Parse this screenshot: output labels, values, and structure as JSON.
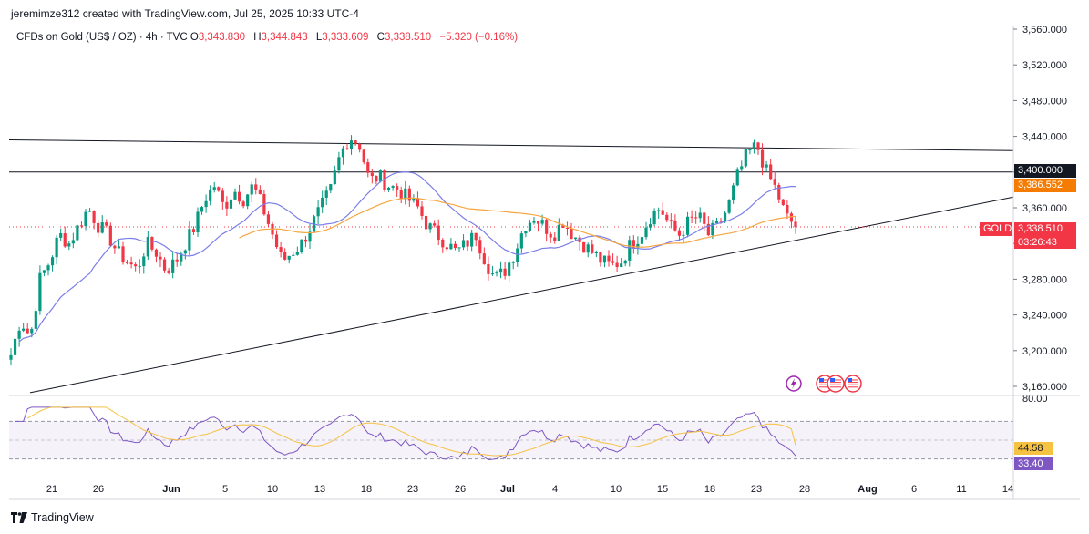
{
  "header": {
    "byline": "jeremimze312 created with TradingView.com, Jul 25, 2025 10:33 UTC-4"
  },
  "legend": {
    "symbol": "CFDs on Gold (US$ / OZ) · 4h · TVC",
    "o_label": "O",
    "o_value": "3,343.830",
    "h_label": "H",
    "h_value": "3,344.843",
    "l_label": "L",
    "l_value": "3,333.609",
    "c_label": "C",
    "c_value": "3,338.510",
    "change": "−5.320 (−0.16%)"
  },
  "price_tags": {
    "level": "3,400.000",
    "ma": "3,386.552",
    "symbol": "GOLD",
    "last": "3,338.510",
    "countdown": "03:26:43"
  },
  "rsi_tags": {
    "ma": "44.58",
    "rsi": "33.40"
  },
  "footer": {
    "brand": "TradingView"
  },
  "colors": {
    "up": "#089981",
    "down": "#f23645",
    "ma_slow": "#7b7fe8",
    "ma_fast": "#f5a742",
    "rsi": "#7e57c2",
    "rsi_ma": "#f5c242",
    "line": "#131722"
  },
  "chart_data": {
    "type": "candlestick",
    "timeframe": "4h",
    "price_axis": {
      "ticks": [
        "3,560.000",
        "3,520.000",
        "3,480.000",
        "3,440.000",
        "3,400.000",
        "3,360.000",
        "3,320.000",
        "3,280.000",
        "3,240.000",
        "3,200.000",
        "3,160.000"
      ],
      "range": [
        3140,
        3570
      ]
    },
    "time_axis": {
      "labels": [
        "21",
        "26",
        "Jun",
        "5",
        "10",
        "13",
        "18",
        "23",
        "26",
        "Jul",
        "4",
        "10",
        "15",
        "18",
        "23",
        "28",
        "Aug",
        "6",
        "11",
        "14"
      ]
    },
    "close_path": [
      3195,
      3235,
      3215,
      3280,
      3300,
      3330,
      3320,
      3340,
      3360,
      3340,
      3330,
      3310,
      3300,
      3290,
      3320,
      3310,
      3290,
      3300,
      3320,
      3340,
      3370,
      3385,
      3360,
      3380,
      3370,
      3385,
      3360,
      3330,
      3300,
      3310,
      3320,
      3340,
      3360,
      3380,
      3420,
      3440,
      3430,
      3390,
      3395,
      3385,
      3380,
      3370,
      3360,
      3340,
      3330,
      3320,
      3310,
      3320,
      3330,
      3300,
      3280,
      3290,
      3310,
      3340,
      3350,
      3340,
      3330,
      3345,
      3330,
      3320,
      3310,
      3300,
      3295,
      3300,
      3320,
      3330,
      3350,
      3360,
      3340,
      3330,
      3345,
      3350,
      3330,
      3340,
      3360,
      3395,
      3420,
      3430,
      3400,
      3380,
      3350,
      3340
    ],
    "horizontal_levels": [
      3400.0
    ],
    "trendlines": [
      {
        "from": [
          "21",
          3436
        ],
        "to": [
          "28+",
          3424
        ]
      },
      {
        "from": [
          "21",
          3153
        ],
        "to": [
          "Aug+",
          3372
        ]
      }
    ],
    "last_price": 3338.51,
    "ma_value": 3386.552,
    "rsi": {
      "range": [
        0,
        100
      ],
      "axis_top_label": "80.00",
      "band": [
        30,
        70
      ],
      "rsi_value": 33.4,
      "rsi_ma_value": 44.58
    }
  }
}
